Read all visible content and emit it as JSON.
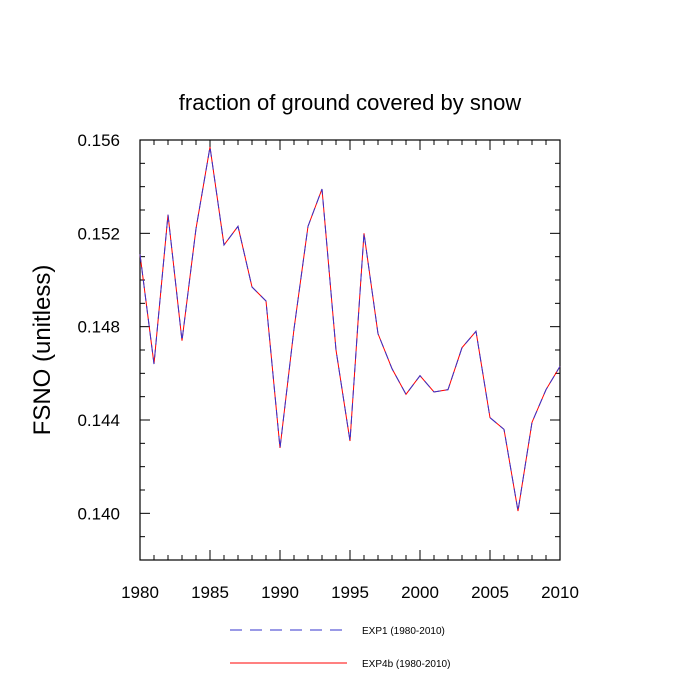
{
  "chart_data": {
    "type": "line",
    "title": "fraction of ground covered by snow",
    "xlabel": "",
    "ylabel": "FSNO  (unitless)",
    "xlim": [
      1980,
      2010
    ],
    "ylim": [
      0.138,
      0.156
    ],
    "x_ticks": [
      1980,
      1985,
      1990,
      1995,
      2000,
      2005,
      2010
    ],
    "x_tick_labels": [
      "1980",
      "1985",
      "1990",
      "1995",
      "2000",
      "2005",
      "2010"
    ],
    "y_ticks": [
      0.14,
      0.144,
      0.148,
      0.152,
      0.156
    ],
    "y_tick_labels": [
      "0.140",
      "0.144",
      "0.148",
      "0.152",
      "0.156"
    ],
    "grid": false,
    "legend_position": "bottom",
    "x": [
      1980,
      1981,
      1982,
      1983,
      1984,
      1985,
      1986,
      1987,
      1988,
      1989,
      1990,
      1991,
      1992,
      1993,
      1994,
      1995,
      1996,
      1997,
      1998,
      1999,
      2000,
      2001,
      2002,
      2003,
      2004,
      2005,
      2006,
      2007,
      2008,
      2009,
      2010
    ],
    "series": [
      {
        "name": "EXP1 (1980-2010)",
        "color": "#3333cc",
        "style": "dashed",
        "values": [
          0.1511,
          0.1464,
          0.1528,
          0.1474,
          0.1522,
          0.1557,
          0.1515,
          0.1523,
          0.1497,
          0.1491,
          0.1428,
          0.1479,
          0.1523,
          0.1539,
          0.147,
          0.1431,
          0.152,
          0.1477,
          0.1462,
          0.1451,
          0.1459,
          0.1452,
          0.1453,
          0.1471,
          0.1478,
          0.1441,
          0.1436,
          0.1401,
          0.1439,
          0.1453,
          0.1463
        ]
      },
      {
        "name": "EXP4b (1980-2010)",
        "color": "#ff0000",
        "style": "solid",
        "values": [
          0.1511,
          0.1464,
          0.1528,
          0.1474,
          0.1522,
          0.1557,
          0.1515,
          0.1523,
          0.1497,
          0.1491,
          0.1428,
          0.1479,
          0.1523,
          0.1539,
          0.147,
          0.1431,
          0.152,
          0.1477,
          0.1462,
          0.1451,
          0.1459,
          0.1452,
          0.1453,
          0.1471,
          0.1478,
          0.1441,
          0.1436,
          0.1401,
          0.1439,
          0.1453,
          0.1463
        ]
      }
    ]
  }
}
